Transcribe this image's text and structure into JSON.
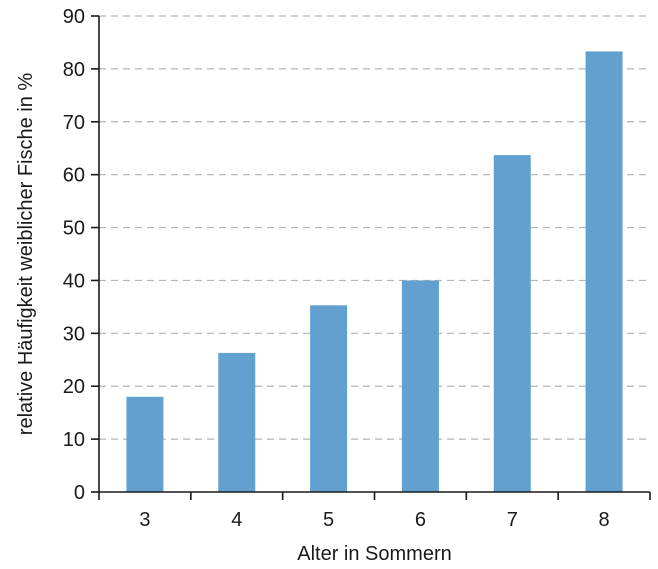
{
  "chart_data": {
    "type": "bar",
    "title": "",
    "xlabel": "Alter in Sommern",
    "ylabel": "relative Häufigkeit weiblicher Fische in %",
    "categories": [
      "3",
      "4",
      "5",
      "6",
      "7",
      "8"
    ],
    "values": [
      18,
      26.3,
      35.3,
      40,
      63.7,
      83.3
    ],
    "ylim": [
      0,
      90
    ],
    "yticks": [
      "0",
      "10",
      "20",
      "30",
      "40",
      "50",
      "60",
      "70",
      "80",
      "90"
    ],
    "grid": "horizontal dashed",
    "bar_color": "#62a0d0",
    "grid_color": "#b3b3b3",
    "axis_color": "#1a1a1a"
  }
}
